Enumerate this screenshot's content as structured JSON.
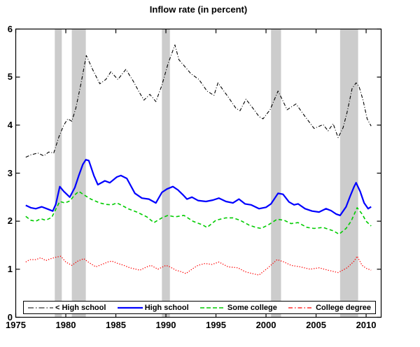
{
  "title": "Inflow rate (in percent)",
  "chart_data": {
    "type": "line",
    "title": "Inflow rate (in percent)",
    "xlabel": "",
    "ylabel": "",
    "xlim": [
      1975,
      2011.5
    ],
    "ylim": [
      0,
      6
    ],
    "x_ticks": [
      1975,
      1980,
      1985,
      1990,
      1995,
      2000,
      2005,
      2010
    ],
    "y_ticks": [
      0,
      1,
      2,
      3,
      4,
      5,
      6
    ],
    "grid": false,
    "legend_position": "bottom-inside",
    "band_color": "#cccccc",
    "recession_bands": [
      [
        1978.9,
        1979.6
      ],
      [
        1980.6,
        1982.0
      ],
      [
        1989.6,
        1990.4
      ],
      [
        2000.5,
        2001.5
      ],
      [
        2007.4,
        2009.2
      ]
    ],
    "series": [
      {
        "name": "< High school",
        "color": "#000000",
        "style": "dash-dot",
        "width": 1.1,
        "points": [
          [
            1976.0,
            3.33
          ],
          [
            1976.5,
            3.38
          ],
          [
            1977.2,
            3.42
          ],
          [
            1977.8,
            3.36
          ],
          [
            1978.3,
            3.44
          ],
          [
            1978.8,
            3.42
          ],
          [
            1979.3,
            3.75
          ],
          [
            1979.8,
            4.0
          ],
          [
            1980.2,
            4.13
          ],
          [
            1980.6,
            4.08
          ],
          [
            1981.0,
            4.35
          ],
          [
            1981.5,
            4.85
          ],
          [
            1982.05,
            5.45
          ],
          [
            1982.7,
            5.15
          ],
          [
            1983.4,
            4.86
          ],
          [
            1984.0,
            4.95
          ],
          [
            1984.5,
            5.11
          ],
          [
            1985.2,
            4.95
          ],
          [
            1986.0,
            5.16
          ],
          [
            1986.7,
            4.93
          ],
          [
            1987.3,
            4.7
          ],
          [
            1987.8,
            4.52
          ],
          [
            1988.4,
            4.64
          ],
          [
            1989.0,
            4.49
          ],
          [
            1989.6,
            4.83
          ],
          [
            1990.2,
            5.27
          ],
          [
            1990.9,
            5.67
          ],
          [
            1991.3,
            5.36
          ],
          [
            1991.8,
            5.24
          ],
          [
            1992.5,
            5.07
          ],
          [
            1993.3,
            4.95
          ],
          [
            1994.1,
            4.71
          ],
          [
            1994.8,
            4.62
          ],
          [
            1995.2,
            4.88
          ],
          [
            1996.2,
            4.59
          ],
          [
            1997.0,
            4.35
          ],
          [
            1997.4,
            4.3
          ],
          [
            1998.0,
            4.54
          ],
          [
            1998.7,
            4.35
          ],
          [
            1999.3,
            4.18
          ],
          [
            1999.7,
            4.13
          ],
          [
            2000.4,
            4.32
          ],
          [
            2001.2,
            4.71
          ],
          [
            2001.7,
            4.5
          ],
          [
            2002.1,
            4.32
          ],
          [
            2003.0,
            4.44
          ],
          [
            2003.9,
            4.18
          ],
          [
            2004.8,
            3.93
          ],
          [
            2005.7,
            4.01
          ],
          [
            2006.2,
            3.88
          ],
          [
            2006.7,
            4.03
          ],
          [
            2007.2,
            3.74
          ],
          [
            2007.7,
            3.95
          ],
          [
            2008.1,
            4.27
          ],
          [
            2008.6,
            4.76
          ],
          [
            2009.0,
            4.88
          ],
          [
            2009.3,
            4.8
          ],
          [
            2009.7,
            4.51
          ],
          [
            2010.1,
            4.13
          ],
          [
            2010.5,
            3.98
          ]
        ]
      },
      {
        "name": "High school",
        "color": "#0000ff",
        "style": "solid",
        "width": 2.2,
        "points": [
          [
            1976.0,
            2.33
          ],
          [
            1976.5,
            2.28
          ],
          [
            1977.0,
            2.26
          ],
          [
            1977.6,
            2.3
          ],
          [
            1978.1,
            2.26
          ],
          [
            1978.7,
            2.21
          ],
          [
            1979.0,
            2.35
          ],
          [
            1979.4,
            2.72
          ],
          [
            1979.8,
            2.62
          ],
          [
            1980.4,
            2.5
          ],
          [
            1980.9,
            2.7
          ],
          [
            1981.3,
            2.95
          ],
          [
            1981.7,
            3.18
          ],
          [
            1982.0,
            3.28
          ],
          [
            1982.3,
            3.26
          ],
          [
            1982.8,
            2.95
          ],
          [
            1983.2,
            2.76
          ],
          [
            1983.9,
            2.84
          ],
          [
            1984.4,
            2.8
          ],
          [
            1985.1,
            2.92
          ],
          [
            1985.5,
            2.95
          ],
          [
            1986.1,
            2.89
          ],
          [
            1986.9,
            2.58
          ],
          [
            1987.6,
            2.48
          ],
          [
            1988.3,
            2.46
          ],
          [
            1989.0,
            2.38
          ],
          [
            1989.6,
            2.6
          ],
          [
            1990.1,
            2.67
          ],
          [
            1990.7,
            2.72
          ],
          [
            1991.2,
            2.65
          ],
          [
            1991.7,
            2.55
          ],
          [
            1992.1,
            2.46
          ],
          [
            1992.6,
            2.5
          ],
          [
            1993.2,
            2.43
          ],
          [
            1994.0,
            2.41
          ],
          [
            1994.7,
            2.44
          ],
          [
            1995.3,
            2.48
          ],
          [
            1996.0,
            2.41
          ],
          [
            1996.7,
            2.38
          ],
          [
            1997.3,
            2.46
          ],
          [
            1997.9,
            2.36
          ],
          [
            1998.5,
            2.34
          ],
          [
            1999.3,
            2.26
          ],
          [
            2000.0,
            2.29
          ],
          [
            2000.5,
            2.36
          ],
          [
            2001.2,
            2.58
          ],
          [
            2001.7,
            2.56
          ],
          [
            2002.3,
            2.4
          ],
          [
            2002.8,
            2.34
          ],
          [
            2003.2,
            2.36
          ],
          [
            2003.9,
            2.26
          ],
          [
            2004.6,
            2.21
          ],
          [
            2005.3,
            2.19
          ],
          [
            2006.0,
            2.26
          ],
          [
            2006.5,
            2.22
          ],
          [
            2007.0,
            2.15
          ],
          [
            2007.4,
            2.12
          ],
          [
            2008.0,
            2.3
          ],
          [
            2008.4,
            2.52
          ],
          [
            2008.8,
            2.72
          ],
          [
            2009.0,
            2.8
          ],
          [
            2009.4,
            2.62
          ],
          [
            2009.8,
            2.38
          ],
          [
            2010.2,
            2.26
          ],
          [
            2010.5,
            2.3
          ]
        ]
      },
      {
        "name": "Some college",
        "color": "#00cc00",
        "style": "dashed",
        "width": 1.6,
        "points": [
          [
            1976.0,
            2.1
          ],
          [
            1976.5,
            2.02
          ],
          [
            1977.0,
            2.0
          ],
          [
            1977.5,
            2.05
          ],
          [
            1978.0,
            2.02
          ],
          [
            1978.6,
            2.08
          ],
          [
            1979.0,
            2.25
          ],
          [
            1979.4,
            2.41
          ],
          [
            1979.9,
            2.38
          ],
          [
            1980.4,
            2.42
          ],
          [
            1980.9,
            2.55
          ],
          [
            1981.3,
            2.62
          ],
          [
            1981.8,
            2.55
          ],
          [
            1982.5,
            2.46
          ],
          [
            1983.4,
            2.38
          ],
          [
            1984.0,
            2.35
          ],
          [
            1984.6,
            2.34
          ],
          [
            1985.1,
            2.38
          ],
          [
            1985.7,
            2.32
          ],
          [
            1986.2,
            2.26
          ],
          [
            1987.1,
            2.19
          ],
          [
            1988.1,
            2.09
          ],
          [
            1988.8,
            1.97
          ],
          [
            1989.6,
            2.07
          ],
          [
            1990.2,
            2.12
          ],
          [
            1990.9,
            2.09
          ],
          [
            1991.8,
            2.12
          ],
          [
            1992.7,
            2.0
          ],
          [
            1993.7,
            1.92
          ],
          [
            1994.1,
            1.87
          ],
          [
            1995.0,
            2.02
          ],
          [
            1996.0,
            2.07
          ],
          [
            1996.7,
            2.07
          ],
          [
            1997.4,
            2.02
          ],
          [
            1998.3,
            1.92
          ],
          [
            1999.0,
            1.87
          ],
          [
            1999.5,
            1.85
          ],
          [
            2000.2,
            1.92
          ],
          [
            2001.1,
            2.04
          ],
          [
            2001.8,
            2.02
          ],
          [
            2002.5,
            1.95
          ],
          [
            2003.2,
            1.97
          ],
          [
            2004.1,
            1.87
          ],
          [
            2004.8,
            1.85
          ],
          [
            2005.7,
            1.87
          ],
          [
            2006.7,
            1.8
          ],
          [
            2007.3,
            1.73
          ],
          [
            2008.0,
            1.85
          ],
          [
            2008.5,
            2.0
          ],
          [
            2009.1,
            2.28
          ],
          [
            2009.6,
            2.15
          ],
          [
            2010.0,
            2.0
          ],
          [
            2010.5,
            1.9
          ]
        ]
      },
      {
        "name": "College degree",
        "color": "#ff0000",
        "style": "dotted",
        "width": 1.3,
        "points": [
          [
            1976.0,
            1.15
          ],
          [
            1976.4,
            1.2
          ],
          [
            1977.0,
            1.2
          ],
          [
            1977.5,
            1.24
          ],
          [
            1978.0,
            1.18
          ],
          [
            1978.5,
            1.22
          ],
          [
            1979.0,
            1.25
          ],
          [
            1979.5,
            1.27
          ],
          [
            1980.0,
            1.15
          ],
          [
            1980.6,
            1.08
          ],
          [
            1981.2,
            1.17
          ],
          [
            1981.8,
            1.22
          ],
          [
            1982.3,
            1.14
          ],
          [
            1983.0,
            1.05
          ],
          [
            1983.6,
            1.1
          ],
          [
            1984.2,
            1.15
          ],
          [
            1984.6,
            1.17
          ],
          [
            1985.2,
            1.12
          ],
          [
            1985.8,
            1.08
          ],
          [
            1986.4,
            1.03
          ],
          [
            1987.0,
            1.0
          ],
          [
            1987.4,
            0.98
          ],
          [
            1988.0,
            1.04
          ],
          [
            1988.5,
            1.08
          ],
          [
            1989.2,
            1.0
          ],
          [
            1990.0,
            1.08
          ],
          [
            1990.4,
            1.05
          ],
          [
            1991.0,
            0.98
          ],
          [
            1991.5,
            0.95
          ],
          [
            1992.0,
            0.91
          ],
          [
            1992.6,
            1.0
          ],
          [
            1993.2,
            1.08
          ],
          [
            1993.9,
            1.12
          ],
          [
            1994.6,
            1.1
          ],
          [
            1995.3,
            1.15
          ],
          [
            1996.2,
            1.05
          ],
          [
            1997.2,
            1.03
          ],
          [
            1997.9,
            0.95
          ],
          [
            1998.6,
            0.91
          ],
          [
            1999.3,
            0.88
          ],
          [
            2000.2,
            1.03
          ],
          [
            2001.1,
            1.2
          ],
          [
            2001.8,
            1.15
          ],
          [
            2002.5,
            1.08
          ],
          [
            2003.4,
            1.05
          ],
          [
            2004.4,
            1.0
          ],
          [
            2005.3,
            1.03
          ],
          [
            2006.2,
            0.98
          ],
          [
            2007.2,
            0.93
          ],
          [
            2008.1,
            1.03
          ],
          [
            2008.8,
            1.17
          ],
          [
            2009.1,
            1.27
          ],
          [
            2009.6,
            1.08
          ],
          [
            2010.0,
            1.02
          ],
          [
            2010.5,
            0.98
          ]
        ]
      }
    ]
  }
}
